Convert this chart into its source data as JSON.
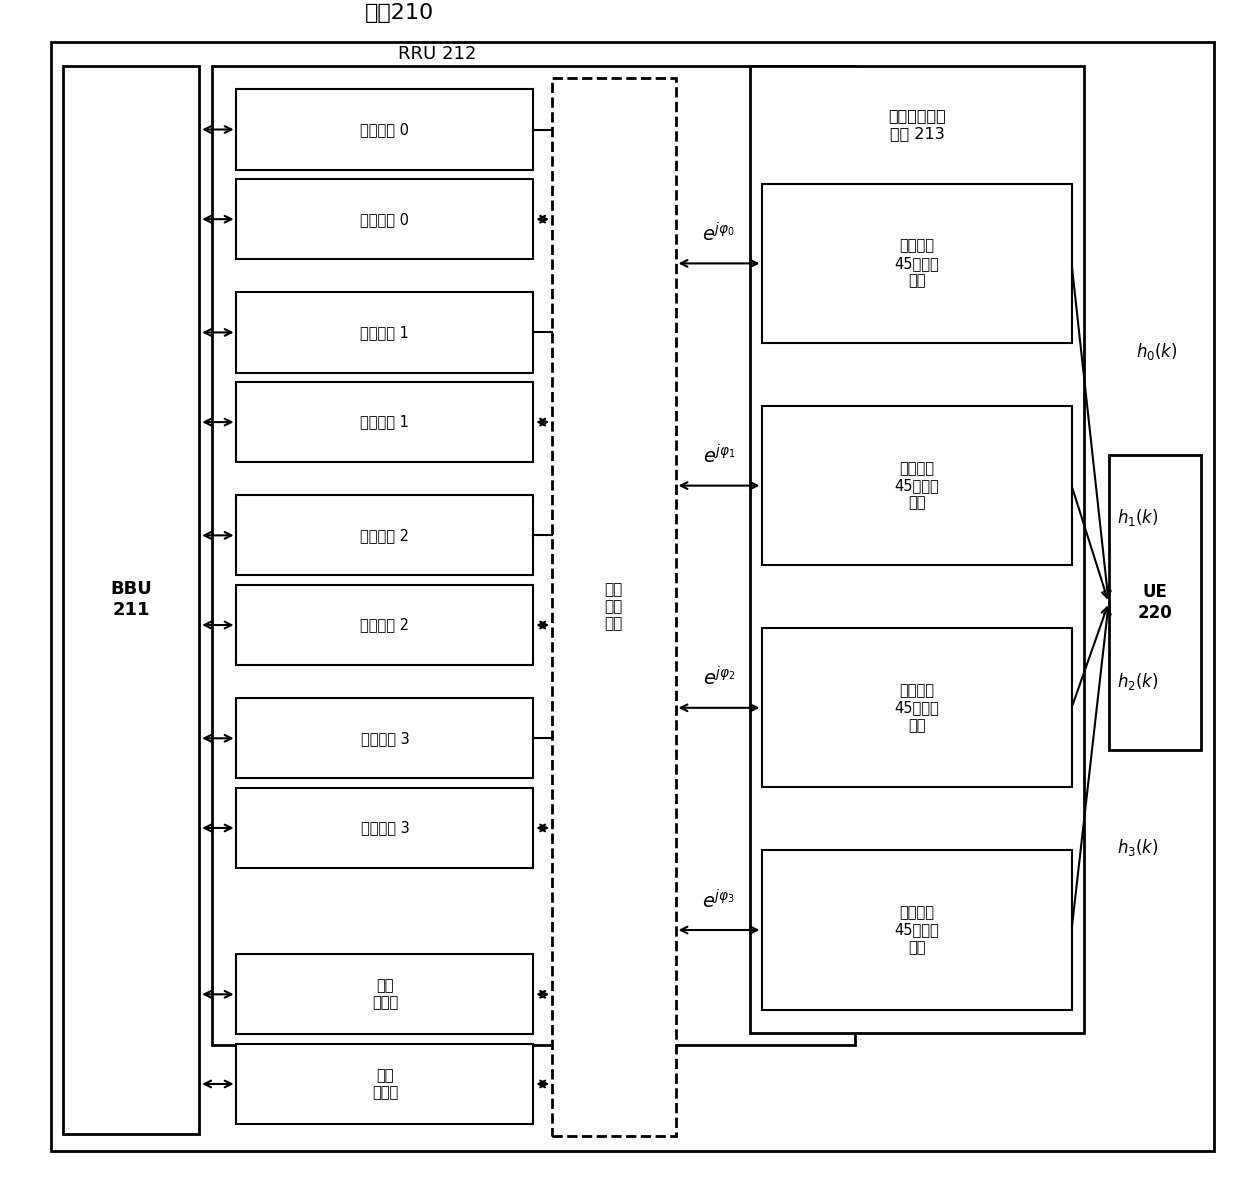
{
  "title": "基站210",
  "bbu_label": "BBU\n211",
  "rru_label": "RRU 212",
  "antenna_group_label": "双列交叉极化\n天线 213",
  "ue_label": "UE\n220",
  "calibration_box_label": "校正\n耦合\n电路",
  "channel_boxes": [
    "发射通道 0",
    "接收通道 0",
    "发射通道 1",
    "接收通道 1",
    "发射通道 2",
    "接收通道 2",
    "发射通道 3",
    "接收通道 3",
    "校正\n发通道",
    "校正\n收通道"
  ],
  "antenna_boxes": [
    "第一列正\n45度极化\n天线",
    "第一列负\n45度极化\n天线",
    "第二列正\n45度极化\n天线",
    "第二列负\n45度极化\n天线"
  ],
  "bg_color": "#ffffff",
  "line_color": "#000000",
  "fig_width": 12.4,
  "fig_height": 11.88,
  "dpi": 100
}
